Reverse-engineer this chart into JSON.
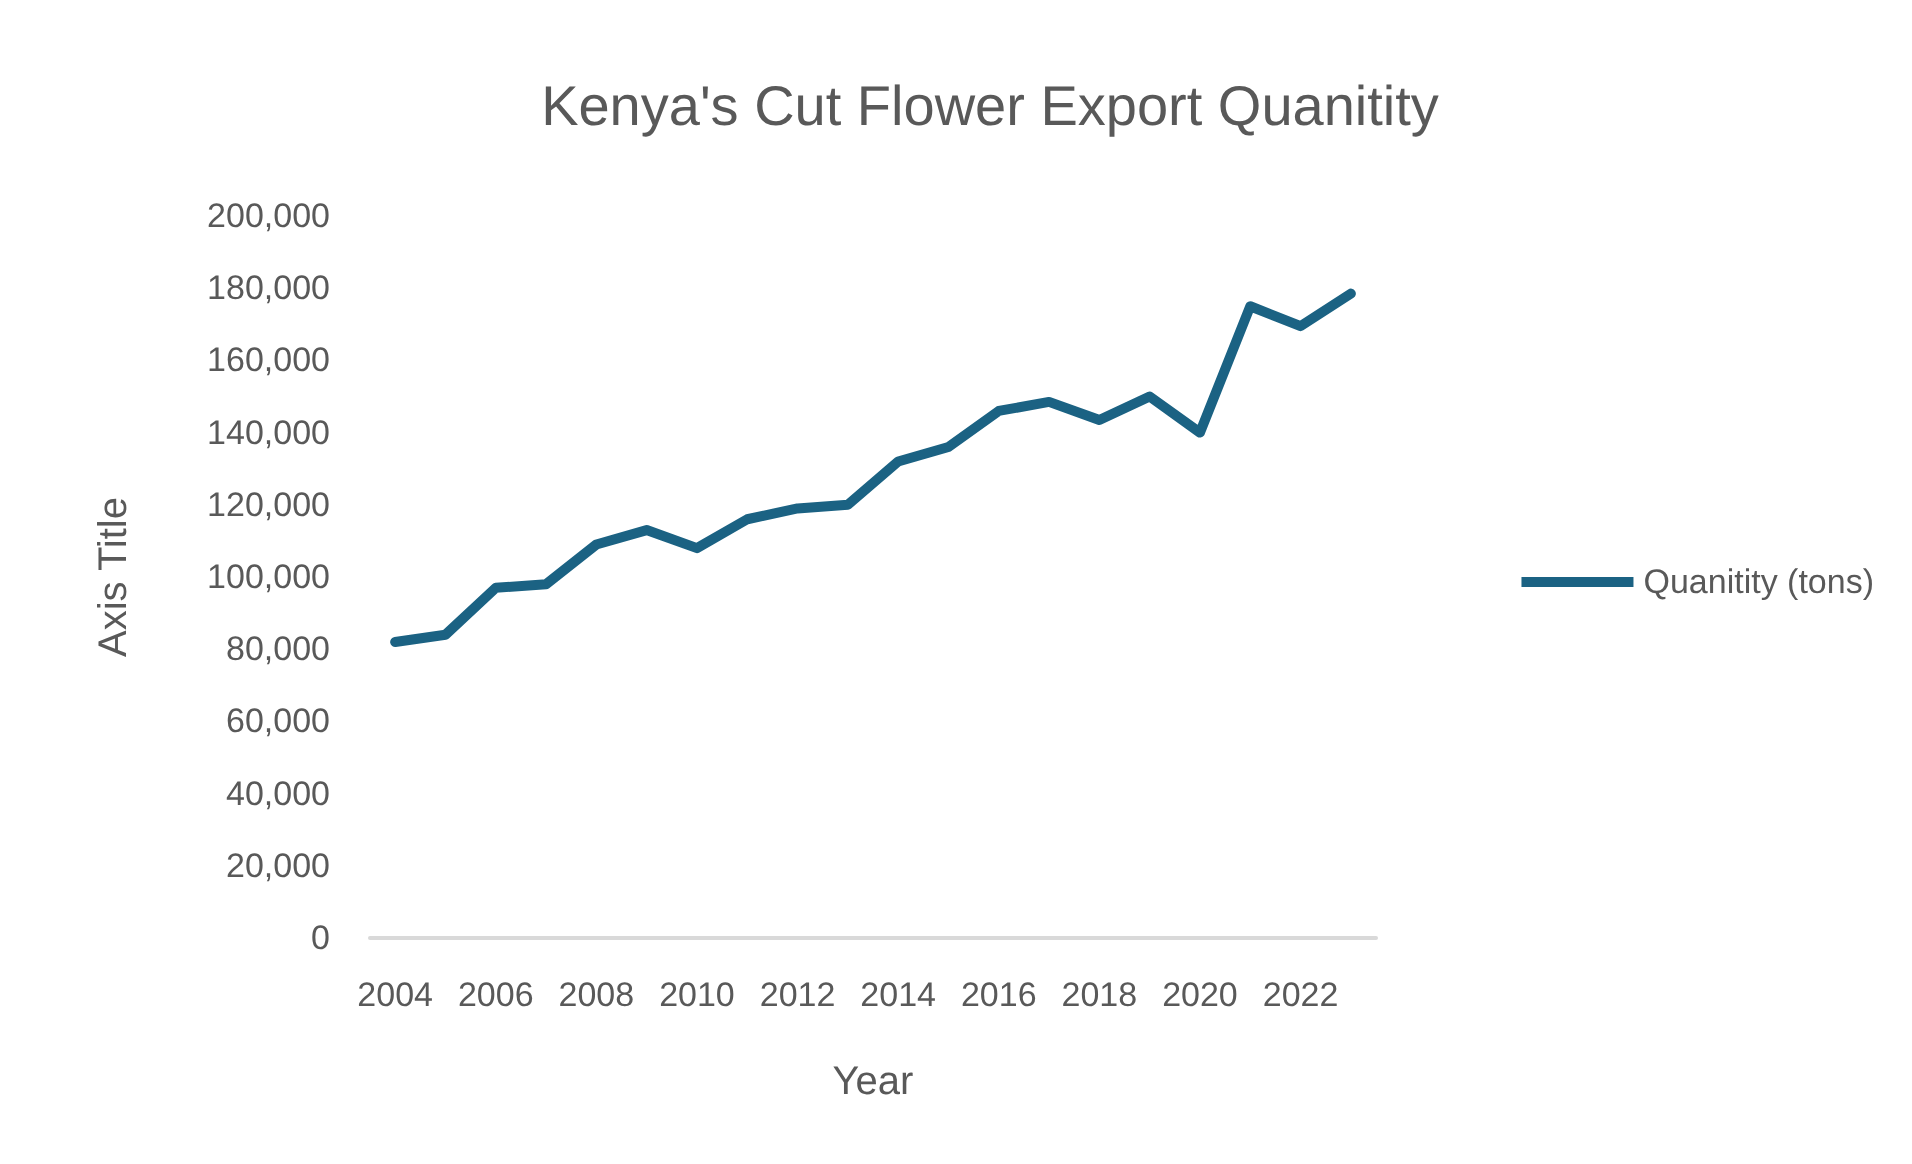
{
  "chart_data": {
    "type": "line",
    "title": "Kenya's Cut Flower Export Quanitity",
    "xlabel": "Year",
    "ylabel": "Axis Title",
    "categories": [
      "2004",
      null,
      "2006",
      null,
      "2008",
      null,
      "2010",
      null,
      "2012",
      null,
      "2014",
      null,
      "2016",
      null,
      "2018",
      null,
      "2020",
      null,
      "2022",
      null
    ],
    "series": [
      {
        "name": "Quanitity (tons)",
        "color": "#1b6283",
        "values": [
          82000,
          84000,
          97000,
          98000,
          109000,
          113000,
          108000,
          116000,
          119000,
          120000,
          132000,
          136000,
          146000,
          148500,
          143500,
          150000,
          140000,
          175000,
          169500,
          178500
        ]
      }
    ],
    "ylim": [
      0,
      200000
    ],
    "yticks": [
      0,
      {
        "value": 20000,
        "label": "20,000"
      },
      {
        "value": 40000,
        "label": "40,000"
      },
      {
        "value": 60000,
        "label": "60,000"
      },
      {
        "value": 80000,
        "label": "80,000"
      },
      {
        "value": 100000,
        "label": "100,000"
      },
      {
        "value": 120000,
        "label": "120,000"
      },
      {
        "value": 140000,
        "label": "140,000"
      },
      {
        "value": 160000,
        "label": "160,000"
      },
      {
        "value": 180000,
        "label": "180,000"
      },
      {
        "value": 200000,
        "label": "200,000"
      }
    ],
    "grid": false,
    "legend": "right",
    "marker": "none",
    "line_style": "solid"
  }
}
